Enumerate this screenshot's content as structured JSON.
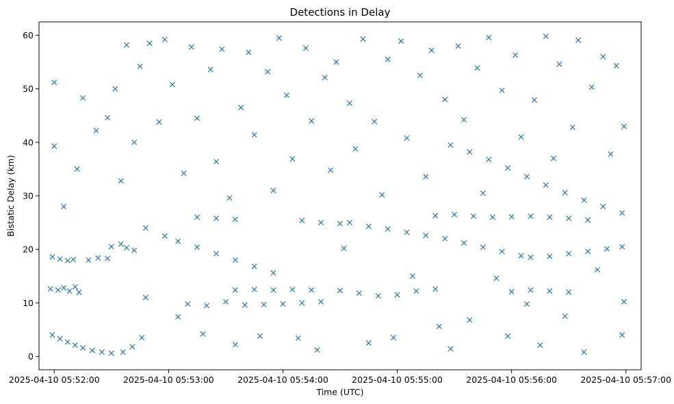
{
  "chart_data": {
    "type": "scatter",
    "title": "Detections in Delay",
    "xlabel": "Time (UTC)",
    "ylabel": "Bistatic Delay (km)",
    "marker": "x",
    "color": "#1f77b4",
    "grid": false,
    "x_unit": "datetime",
    "xlim": [
      "2025-04-10 05:51:52",
      "2025-04-10 05:57:08"
    ],
    "ylim": [
      -2.5,
      62.5
    ],
    "x_ticks": [
      "2025-04-10 05:52:00",
      "2025-04-10 05:53:00",
      "2025-04-10 05:54:00",
      "2025-04-10 05:55:00",
      "2025-04-10 05:56:00",
      "2025-04-10 05:57:00"
    ],
    "y_ticks": [
      0,
      10,
      20,
      30,
      40,
      50,
      60
    ],
    "series": [
      {
        "points": [
          [
            "2025-04-10 05:51:59",
            4.0
          ],
          [
            "2025-04-10 05:52:03",
            3.3
          ],
          [
            "2025-04-10 05:52:07",
            2.7
          ],
          [
            "2025-04-10 05:52:11",
            2.1
          ],
          [
            "2025-04-10 05:52:15",
            1.6
          ],
          [
            "2025-04-10 05:52:20",
            1.1
          ],
          [
            "2025-04-10 05:52:25",
            0.8
          ],
          [
            "2025-04-10 05:52:30",
            0.6
          ],
          [
            "2025-04-10 05:52:36",
            0.8
          ],
          [
            "2025-04-10 05:52:41",
            1.8
          ],
          [
            "2025-04-10 05:52:46",
            3.5
          ],
          [
            "2025-04-10 05:51:58",
            12.6
          ],
          [
            "2025-04-10 05:52:02",
            12.4
          ],
          [
            "2025-04-10 05:52:05",
            12.8
          ],
          [
            "2025-04-10 05:52:08",
            12.2
          ],
          [
            "2025-04-10 05:52:11",
            13.0
          ],
          [
            "2025-04-10 05:52:13",
            12.0
          ],
          [
            "2025-04-10 05:51:59",
            18.6
          ],
          [
            "2025-04-10 05:52:03",
            18.2
          ],
          [
            "2025-04-10 05:52:07",
            17.9
          ],
          [
            "2025-04-10 05:52:10",
            18.1
          ],
          [
            "2025-04-10 05:52:18",
            18.0
          ],
          [
            "2025-04-10 05:52:23",
            18.4
          ],
          [
            "2025-04-10 05:52:28",
            18.3
          ],
          [
            "2025-04-10 05:52:30",
            20.5
          ],
          [
            "2025-04-10 05:52:35",
            21.0
          ],
          [
            "2025-04-10 05:52:38",
            20.3
          ],
          [
            "2025-04-10 05:52:42",
            19.8
          ],
          [
            "2025-04-10 05:52:48",
            24.0
          ],
          [
            "2025-04-10 05:52:58",
            22.5
          ],
          [
            "2025-04-10 05:53:05",
            21.5
          ],
          [
            "2025-04-10 05:53:15",
            20.4
          ],
          [
            "2025-04-10 05:53:25",
            19.2
          ],
          [
            "2025-04-10 05:53:35",
            18.0
          ],
          [
            "2025-04-10 05:53:45",
            16.8
          ],
          [
            "2025-04-10 05:53:55",
            15.6
          ],
          [
            "2025-04-10 05:53:10",
            9.8
          ],
          [
            "2025-04-10 05:53:20",
            9.5
          ],
          [
            "2025-04-10 05:53:30",
            10.2
          ],
          [
            "2025-04-10 05:53:40",
            9.6
          ],
          [
            "2025-04-10 05:53:50",
            9.7
          ],
          [
            "2025-04-10 05:54:00",
            9.8
          ],
          [
            "2025-04-10 05:54:10",
            10.0
          ],
          [
            "2025-04-10 05:54:20",
            10.2
          ],
          [
            "2025-04-10 05:53:35",
            12.4
          ],
          [
            "2025-04-10 05:53:45",
            12.5
          ],
          [
            "2025-04-10 05:53:55",
            12.4
          ],
          [
            "2025-04-10 05:54:05",
            12.5
          ],
          [
            "2025-04-10 05:54:15",
            12.4
          ],
          [
            "2025-04-10 05:54:30",
            12.3
          ],
          [
            "2025-04-10 05:54:40",
            11.8
          ],
          [
            "2025-04-10 05:54:50",
            11.3
          ],
          [
            "2025-04-10 05:55:00",
            11.5
          ],
          [
            "2025-04-10 05:55:10",
            12.2
          ],
          [
            "2025-04-10 05:55:20",
            12.6
          ],
          [
            "2025-04-10 05:53:15",
            26.0
          ],
          [
            "2025-04-10 05:53:25",
            25.8
          ],
          [
            "2025-04-10 05:53:35",
            25.6
          ],
          [
            "2025-04-10 05:54:10",
            25.4
          ],
          [
            "2025-04-10 05:54:20",
            25.0
          ],
          [
            "2025-04-10 05:54:30",
            24.8
          ],
          [
            "2025-04-10 05:54:35",
            25.0
          ],
          [
            "2025-04-10 05:54:45",
            24.3
          ],
          [
            "2025-04-10 05:54:55",
            23.8
          ],
          [
            "2025-04-10 05:55:05",
            23.2
          ],
          [
            "2025-04-10 05:55:15",
            22.6
          ],
          [
            "2025-04-10 05:55:25",
            22.0
          ],
          [
            "2025-04-10 05:55:35",
            21.2
          ],
          [
            "2025-04-10 05:55:45",
            20.4
          ],
          [
            "2025-04-10 05:55:55",
            19.6
          ],
          [
            "2025-04-10 05:56:05",
            18.8
          ],
          [
            "2025-04-10 05:55:20",
            26.3
          ],
          [
            "2025-04-10 05:55:30",
            26.5
          ],
          [
            "2025-04-10 05:55:40",
            26.2
          ],
          [
            "2025-04-10 05:55:50",
            26.0
          ],
          [
            "2025-04-10 05:56:00",
            26.1
          ],
          [
            "2025-04-10 05:56:10",
            26.2
          ],
          [
            "2025-04-10 05:56:20",
            26.0
          ],
          [
            "2025-04-10 05:56:30",
            25.8
          ],
          [
            "2025-04-10 05:56:40",
            25.5
          ],
          [
            "2025-04-10 05:55:28",
            39.5
          ],
          [
            "2025-04-10 05:55:38",
            38.2
          ],
          [
            "2025-04-10 05:55:48",
            36.8
          ],
          [
            "2025-04-10 05:55:58",
            35.2
          ],
          [
            "2025-04-10 05:56:08",
            33.6
          ],
          [
            "2025-04-10 05:56:18",
            32.0
          ],
          [
            "2025-04-10 05:56:28",
            30.6
          ],
          [
            "2025-04-10 05:56:38",
            29.2
          ],
          [
            "2025-04-10 05:56:48",
            28.0
          ],
          [
            "2025-04-10 05:56:58",
            26.8
          ],
          [
            "2025-04-10 05:56:10",
            18.5
          ],
          [
            "2025-04-10 05:56:20",
            18.7
          ],
          [
            "2025-04-10 05:56:30",
            19.2
          ],
          [
            "2025-04-10 05:56:40",
            19.6
          ],
          [
            "2025-04-10 05:56:50",
            20.1
          ],
          [
            "2025-04-10 05:56:58",
            20.5
          ],
          [
            "2025-04-10 05:56:00",
            12.1
          ],
          [
            "2025-04-10 05:56:10",
            12.4
          ],
          [
            "2025-04-10 05:56:20",
            12.2
          ],
          [
            "2025-04-10 05:56:30",
            12.0
          ],
          [
            "2025-04-10 05:52:00",
            51.2
          ],
          [
            "2025-04-10 05:52:00",
            39.3
          ],
          [
            "2025-04-10 05:52:05",
            28.0
          ],
          [
            "2025-04-10 05:52:12",
            35.0
          ],
          [
            "2025-04-10 05:52:15",
            48.3
          ],
          [
            "2025-04-10 05:52:22",
            42.2
          ],
          [
            "2025-04-10 05:52:28",
            44.6
          ],
          [
            "2025-04-10 05:52:32",
            50.0
          ],
          [
            "2025-04-10 05:52:35",
            32.8
          ],
          [
            "2025-04-10 05:52:38",
            58.2
          ],
          [
            "2025-04-10 05:52:42",
            40.0
          ],
          [
            "2025-04-10 05:52:45",
            54.2
          ],
          [
            "2025-04-10 05:52:48",
            11.0
          ],
          [
            "2025-04-10 05:52:50",
            58.5
          ],
          [
            "2025-04-10 05:52:55",
            43.8
          ],
          [
            "2025-04-10 05:52:58",
            59.2
          ],
          [
            "2025-04-10 05:53:02",
            50.8
          ],
          [
            "2025-04-10 05:53:05",
            7.4
          ],
          [
            "2025-04-10 05:53:08",
            34.2
          ],
          [
            "2025-04-10 05:53:12",
            57.8
          ],
          [
            "2025-04-10 05:53:15",
            44.5
          ],
          [
            "2025-04-10 05:53:18",
            4.2
          ],
          [
            "2025-04-10 05:53:22",
            53.6
          ],
          [
            "2025-04-10 05:53:25",
            36.4
          ],
          [
            "2025-04-10 05:53:28",
            57.4
          ],
          [
            "2025-04-10 05:53:32",
            29.6
          ],
          [
            "2025-04-10 05:53:35",
            2.2
          ],
          [
            "2025-04-10 05:53:38",
            46.5
          ],
          [
            "2025-04-10 05:53:42",
            56.8
          ],
          [
            "2025-04-10 05:53:45",
            41.4
          ],
          [
            "2025-04-10 05:53:48",
            3.8
          ],
          [
            "2025-04-10 05:53:52",
            53.2
          ],
          [
            "2025-04-10 05:53:55",
            31.0
          ],
          [
            "2025-04-10 05:53:58",
            59.5
          ],
          [
            "2025-04-10 05:54:02",
            48.8
          ],
          [
            "2025-04-10 05:54:05",
            36.9
          ],
          [
            "2025-04-10 05:54:08",
            3.4
          ],
          [
            "2025-04-10 05:54:12",
            57.6
          ],
          [
            "2025-04-10 05:54:15",
            44.0
          ],
          [
            "2025-04-10 05:54:18",
            1.2
          ],
          [
            "2025-04-10 05:54:22",
            52.1
          ],
          [
            "2025-04-10 05:54:25",
            34.8
          ],
          [
            "2025-04-10 05:54:28",
            55.0
          ],
          [
            "2025-04-10 05:54:32",
            20.2
          ],
          [
            "2025-04-10 05:54:35",
            47.3
          ],
          [
            "2025-04-10 05:54:38",
            38.8
          ],
          [
            "2025-04-10 05:54:42",
            59.3
          ],
          [
            "2025-04-10 05:54:45",
            2.5
          ],
          [
            "2025-04-10 05:54:48",
            43.9
          ],
          [
            "2025-04-10 05:54:52",
            30.2
          ],
          [
            "2025-04-10 05:54:55",
            55.5
          ],
          [
            "2025-04-10 05:54:58",
            3.5
          ],
          [
            "2025-04-10 05:55:02",
            58.9
          ],
          [
            "2025-04-10 05:55:05",
            40.8
          ],
          [
            "2025-04-10 05:55:08",
            15.0
          ],
          [
            "2025-04-10 05:55:12",
            52.5
          ],
          [
            "2025-04-10 05:55:15",
            33.6
          ],
          [
            "2025-04-10 05:55:18",
            57.2
          ],
          [
            "2025-04-10 05:55:22",
            5.6
          ],
          [
            "2025-04-10 05:55:25",
            48.0
          ],
          [
            "2025-04-10 05:55:28",
            1.4
          ],
          [
            "2025-04-10 05:55:32",
            58.0
          ],
          [
            "2025-04-10 05:55:35",
            44.2
          ],
          [
            "2025-04-10 05:55:38",
            6.8
          ],
          [
            "2025-04-10 05:55:42",
            53.9
          ],
          [
            "2025-04-10 05:55:45",
            30.5
          ],
          [
            "2025-04-10 05:55:48",
            59.6
          ],
          [
            "2025-04-10 05:55:52",
            14.6
          ],
          [
            "2025-04-10 05:55:55",
            49.7
          ],
          [
            "2025-04-10 05:55:58",
            3.8
          ],
          [
            "2025-04-10 05:56:02",
            56.3
          ],
          [
            "2025-04-10 05:56:05",
            41.0
          ],
          [
            "2025-04-10 05:56:08",
            9.8
          ],
          [
            "2025-04-10 05:56:12",
            47.9
          ],
          [
            "2025-04-10 05:56:15",
            2.1
          ],
          [
            "2025-04-10 05:56:18",
            59.8
          ],
          [
            "2025-04-10 05:56:22",
            37.0
          ],
          [
            "2025-04-10 05:56:25",
            54.6
          ],
          [
            "2025-04-10 05:56:28",
            7.5
          ],
          [
            "2025-04-10 05:56:32",
            42.8
          ],
          [
            "2025-04-10 05:56:35",
            59.1
          ],
          [
            "2025-04-10 05:56:38",
            0.8
          ],
          [
            "2025-04-10 05:56:42",
            50.3
          ],
          [
            "2025-04-10 05:56:45",
            16.2
          ],
          [
            "2025-04-10 05:56:48",
            56.0
          ],
          [
            "2025-04-10 05:56:52",
            37.8
          ],
          [
            "2025-04-10 05:56:55",
            54.3
          ],
          [
            "2025-04-10 05:56:58",
            4.0
          ],
          [
            "2025-04-10 05:56:59",
            43.0
          ],
          [
            "2025-04-10 05:56:59",
            10.2
          ]
        ]
      }
    ]
  }
}
